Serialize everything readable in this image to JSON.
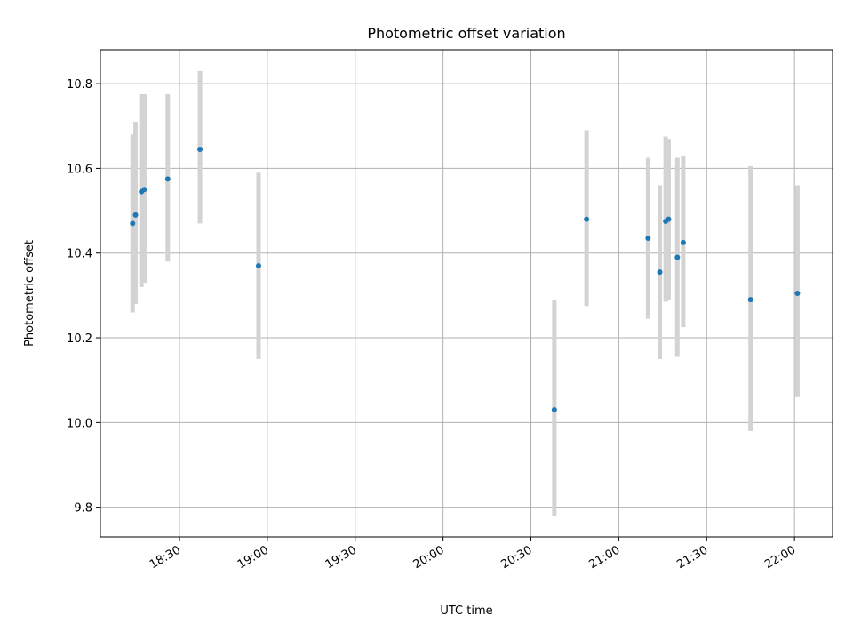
{
  "chart_data": {
    "type": "scatter",
    "title": "Photometric offset variation",
    "xlabel": "UTC time",
    "ylabel": "Photometric offset",
    "x_tick_labels": [
      "18:30",
      "19:00",
      "19:30",
      "20:00",
      "20:30",
      "21:00",
      "21:30",
      "22:00"
    ],
    "y_tick_labels": [
      "9.8",
      "10.0",
      "10.2",
      "10.4",
      "10.6",
      "10.8"
    ],
    "xlim": [
      "18:03",
      "22:13"
    ],
    "ylim": [
      9.73,
      10.88
    ],
    "grid": true,
    "marker_color": "#1f77b4",
    "errorbar_color": "#d3d3d3",
    "points": [
      {
        "time": "18:14",
        "offset": 10.47,
        "err_low": 10.26,
        "err_high": 10.68
      },
      {
        "time": "18:15",
        "offset": 10.49,
        "err_low": 10.28,
        "err_high": 10.71
      },
      {
        "time": "18:17",
        "offset": 10.545,
        "err_low": 10.32,
        "err_high": 10.775
      },
      {
        "time": "18:18",
        "offset": 10.55,
        "err_low": 10.33,
        "err_high": 10.775
      },
      {
        "time": "18:26",
        "offset": 10.575,
        "err_low": 10.38,
        "err_high": 10.775
      },
      {
        "time": "18:37",
        "offset": 10.645,
        "err_low": 10.47,
        "err_high": 10.83
      },
      {
        "time": "18:57",
        "offset": 10.37,
        "err_low": 10.15,
        "err_high": 10.59
      },
      {
        "time": "20:38",
        "offset": 10.03,
        "err_low": 9.78,
        "err_high": 10.29
      },
      {
        "time": "20:49",
        "offset": 10.48,
        "err_low": 10.275,
        "err_high": 10.69
      },
      {
        "time": "21:10",
        "offset": 10.435,
        "err_low": 10.245,
        "err_high": 10.625
      },
      {
        "time": "21:14",
        "offset": 10.355,
        "err_low": 10.15,
        "err_high": 10.56
      },
      {
        "time": "21:16",
        "offset": 10.475,
        "err_low": 10.285,
        "err_high": 10.675
      },
      {
        "time": "21:17",
        "offset": 10.48,
        "err_low": 10.29,
        "err_high": 10.67
      },
      {
        "time": "21:20",
        "offset": 10.39,
        "err_low": 10.155,
        "err_high": 10.625
      },
      {
        "time": "21:22",
        "offset": 10.425,
        "err_low": 10.225,
        "err_high": 10.63
      },
      {
        "time": "21:45",
        "offset": 10.29,
        "err_low": 9.98,
        "err_high": 10.605
      },
      {
        "time": "22:01",
        "offset": 10.305,
        "err_low": 10.06,
        "err_high": 10.56
      }
    ]
  }
}
